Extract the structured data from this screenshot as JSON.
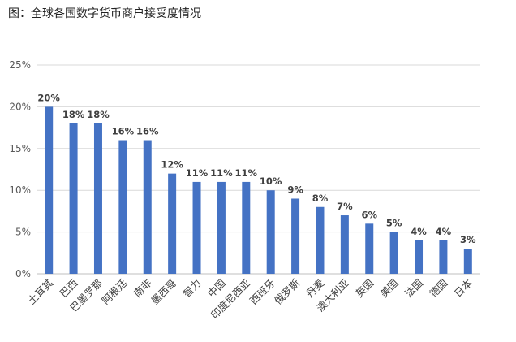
{
  "header": {
    "title": "图：全球各国数字货币商户接受度情况"
  },
  "chart_data": {
    "type": "bar",
    "title": "",
    "xlabel": "",
    "ylabel": "",
    "ylim": [
      0,
      25
    ],
    "yticks": [
      "0%",
      "5%",
      "10%",
      "15%",
      "20%",
      "25%"
    ],
    "grid": true,
    "legend": "none",
    "bar_color": "#4472C4",
    "categories": [
      "土耳其",
      "巴西",
      "巴墨罗那",
      "阿根廷",
      "南非",
      "墨西哥",
      "智力",
      "中国",
      "印度尼西亚",
      "西班牙",
      "俄罗斯",
      "丹麦",
      "澳大利亚",
      "英国",
      "美国",
      "法国",
      "德国",
      "日本"
    ],
    "values": [
      20,
      18,
      18,
      16,
      16,
      12,
      11,
      11,
      11,
      10,
      9,
      8,
      7,
      6,
      5,
      4,
      4,
      3
    ],
    "data_labels": [
      "20%",
      "18%",
      "18%",
      "16%",
      "16%",
      "12%",
      "11%",
      "11%",
      "11%",
      "10%",
      "9%",
      "8%",
      "7%",
      "6%",
      "5%",
      "4%",
      "4%",
      "3%"
    ]
  }
}
